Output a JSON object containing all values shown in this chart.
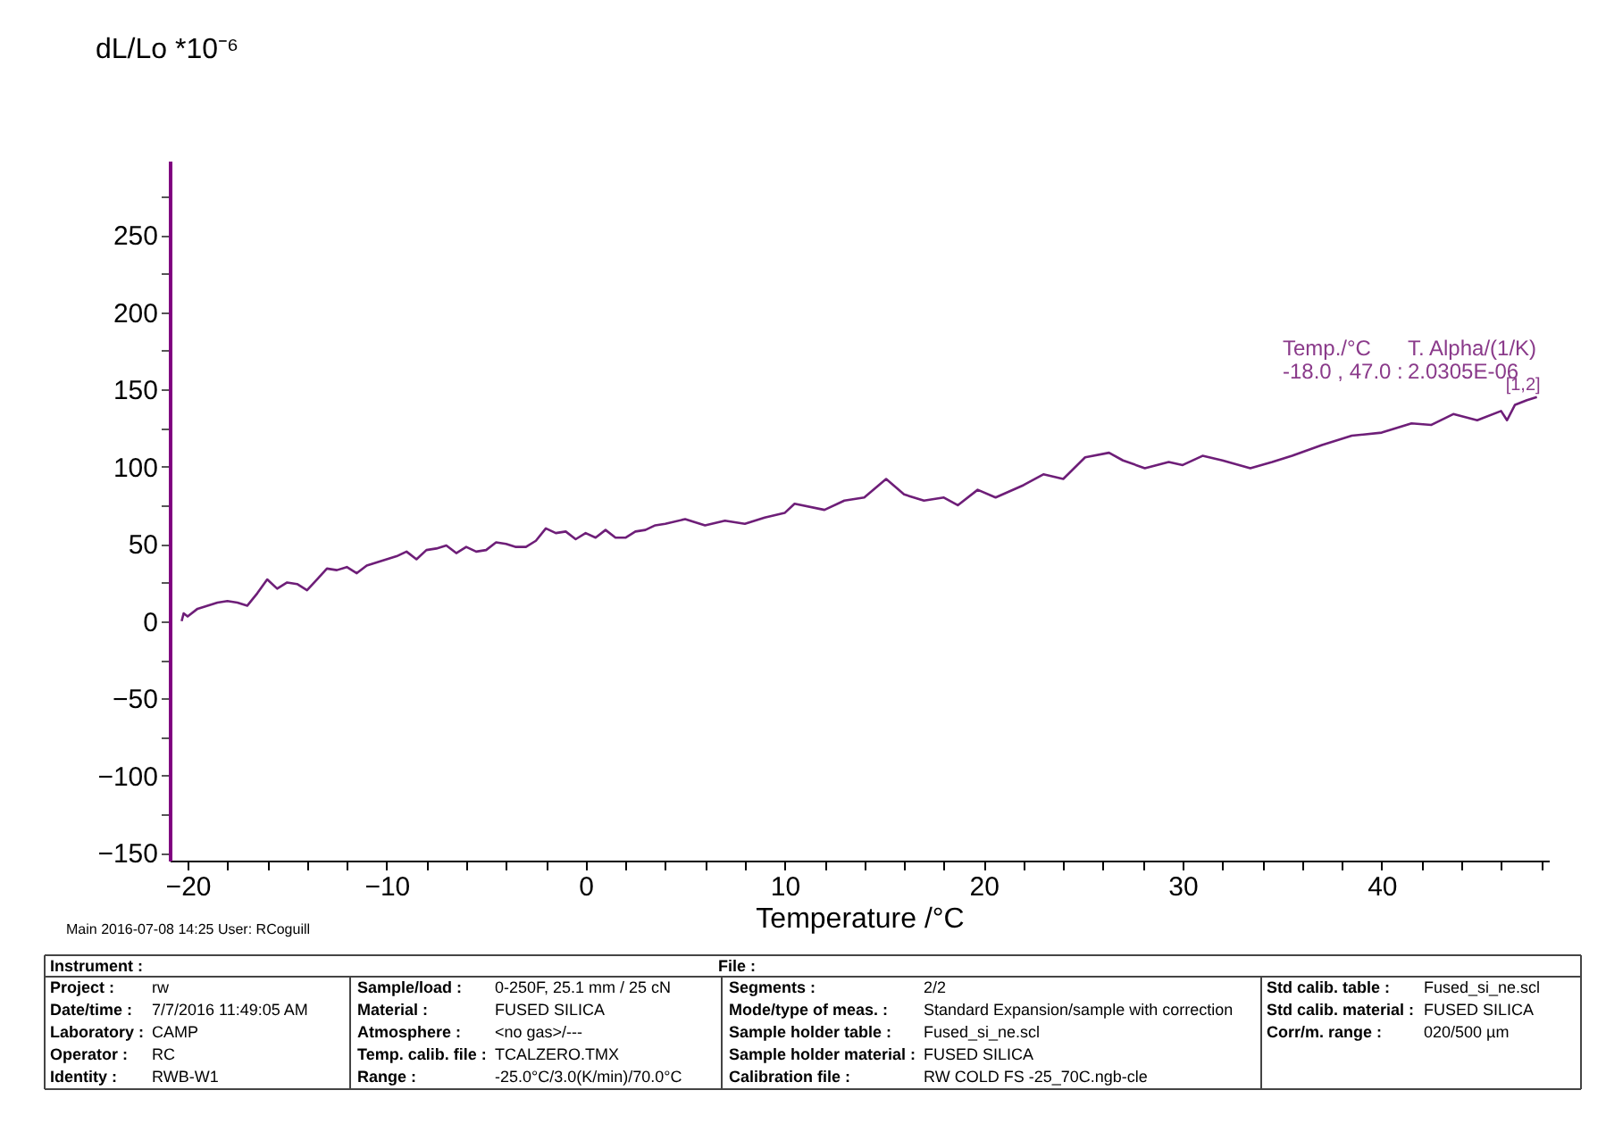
{
  "chart_data": {
    "type": "line",
    "xlabel": "Temperature /°C",
    "ylabel": "dL/Lo *10⁻⁶",
    "x": [
      -20.3,
      -20.2,
      -20,
      -19.5,
      -19,
      -18.5,
      -18,
      -17.5,
      -17,
      -16.5,
      -16,
      -15.5,
      -15,
      -14.5,
      -14,
      -13.5,
      -13,
      -12.5,
      -12,
      -11.5,
      -11,
      -10.5,
      -10,
      -9.5,
      -9,
      -8.5,
      -8,
      -7.5,
      -7,
      -6.5,
      -6,
      -5.5,
      -5,
      -4.5,
      -4,
      -3.5,
      -3,
      -2.5,
      -2,
      -1.5,
      -1,
      -0.5,
      0,
      0.5,
      1,
      1.5,
      2,
      2.5,
      3,
      3.5,
      4,
      5,
      5.5,
      6,
      7,
      8,
      9,
      10,
      10.5,
      12,
      13,
      14,
      15.1,
      16,
      17,
      18,
      18.7,
      19.7,
      20.6,
      22,
      23,
      24,
      25.1,
      26.3,
      27,
      28.1,
      29.3,
      30,
      31,
      32,
      33.4,
      34.5,
      35.5,
      37,
      38.5,
      40,
      41.5,
      42.5,
      43.6,
      44.8,
      46,
      46.3,
      46.7,
      47.3,
      47.8
    ],
    "series": [
      {
        "color": "#6e1e78",
        "values": [
          0,
          5,
          3,
          8,
          10,
          12,
          13,
          12,
          10,
          18,
          27,
          21,
          25,
          24,
          20,
          27,
          34,
          33,
          35,
          31,
          36,
          38,
          40,
          42,
          45,
          40,
          46,
          47,
          49,
          44,
          48,
          45,
          46,
          51,
          50,
          48,
          48,
          52,
          60,
          57,
          58,
          53,
          57,
          54,
          59,
          54,
          54,
          58,
          59,
          62,
          63,
          66,
          64,
          62,
          65,
          63,
          67,
          70,
          76,
          72,
          78,
          80,
          92,
          82,
          78,
          80,
          75,
          85,
          80,
          88,
          95,
          92,
          106,
          109,
          104,
          99,
          103,
          101,
          107,
          104,
          99,
          103,
          107,
          114,
          120,
          122,
          128,
          127,
          134,
          130,
          136,
          130,
          140,
          143,
          145
        ]
      }
    ],
    "xlim": [
      -20.9,
      48.4
    ],
    "xticks": [
      -20,
      {
        "value": -18,
        "label": null
      },
      {
        "value": -16,
        "label": null
      },
      {
        "value": -14,
        "label": null
      },
      {
        "value": -12,
        "label": null
      },
      -10,
      {
        "value": -8,
        "label": null
      },
      {
        "value": -6,
        "label": null
      },
      {
        "value": -4,
        "label": null
      },
      {
        "value": -2,
        "label": null
      },
      0,
      {
        "value": 2,
        "label": null
      },
      {
        "value": 4,
        "label": null
      },
      {
        "value": 6,
        "label": null
      },
      {
        "value": 8,
        "label": null
      },
      10,
      {
        "value": 12,
        "label": null
      },
      {
        "value": 14,
        "label": null
      },
      {
        "value": 16,
        "label": null
      },
      {
        "value": 18,
        "label": null
      },
      20,
      {
        "value": 22,
        "label": null
      },
      {
        "value": 24,
        "label": null
      },
      {
        "value": 26,
        "label": null
      },
      {
        "value": 28,
        "label": null
      },
      30,
      {
        "value": 32,
        "label": null
      },
      {
        "value": 34,
        "label": null
      },
      {
        "value": 36,
        "label": null
      },
      {
        "value": 38,
        "label": null
      },
      40,
      {
        "value": 42,
        "label": null
      },
      {
        "value": 44,
        "label": null
      },
      {
        "value": 46,
        "label": null
      },
      {
        "value": 48,
        "label": null
      }
    ],
    "ylim": [
      -155,
      298
    ],
    "yticks": [
      -150,
      {
        "value": -125,
        "label": null
      },
      -100,
      {
        "value": -75,
        "label": null
      },
      -50,
      {
        "value": -25,
        "label": null
      },
      0,
      {
        "value": 25,
        "label": null
      },
      50,
      {
        "value": 75,
        "label": null
      },
      100,
      {
        "value": 125,
        "label": null
      },
      150,
      {
        "value": 175,
        "label": null
      },
      200,
      {
        "value": 225,
        "label": null
      },
      250,
      {
        "value": 275,
        "label": null
      }
    ],
    "grid": false,
    "annotations": [
      "Temp./°C",
      "T. Alpha/(1/K)",
      "-18.0 , 47.0 :",
      "2.0305E-06",
      {
        "text": "[1,2]",
        "x": 47.8,
        "y": 145
      },
      "Main   2016-07-08 14:25   User: RCoguill",
      "Instrument :",
      "File :",
      "Project :",
      "rw",
      "Date/time :",
      "7/7/2016 11:49:05 AM",
      "Laboratory :",
      "CAMP",
      "Operator :",
      "RC",
      "Identity :",
      "RWB-W1",
      "Sample/load :",
      "0-250F, 25.1 mm / 25 cN",
      "Material :",
      "FUSED SILICA",
      "Atmosphere :",
      "<no gas>/---",
      "Temp. calib. file :",
      "TCALZERO.TMX",
      "Range :",
      "-25.0°C/3.0(K/min)/70.0°C",
      "Segments :",
      "2/2",
      "Mode/type of meas. :",
      "Standard Expansion/sample with correction",
      "Sample holder table :",
      "Fused_si_ne.scl",
      "Sample holder material :",
      "FUSED SILICA",
      "Calibration file :",
      "RW COLD FS -25_70C.ngb-cle",
      "Std calib. table :",
      "Fused_si_ne.scl",
      "Std calib. material :",
      "FUSED SILICA",
      "Corr/m. range :",
      "020/500 µm"
    ]
  }
}
